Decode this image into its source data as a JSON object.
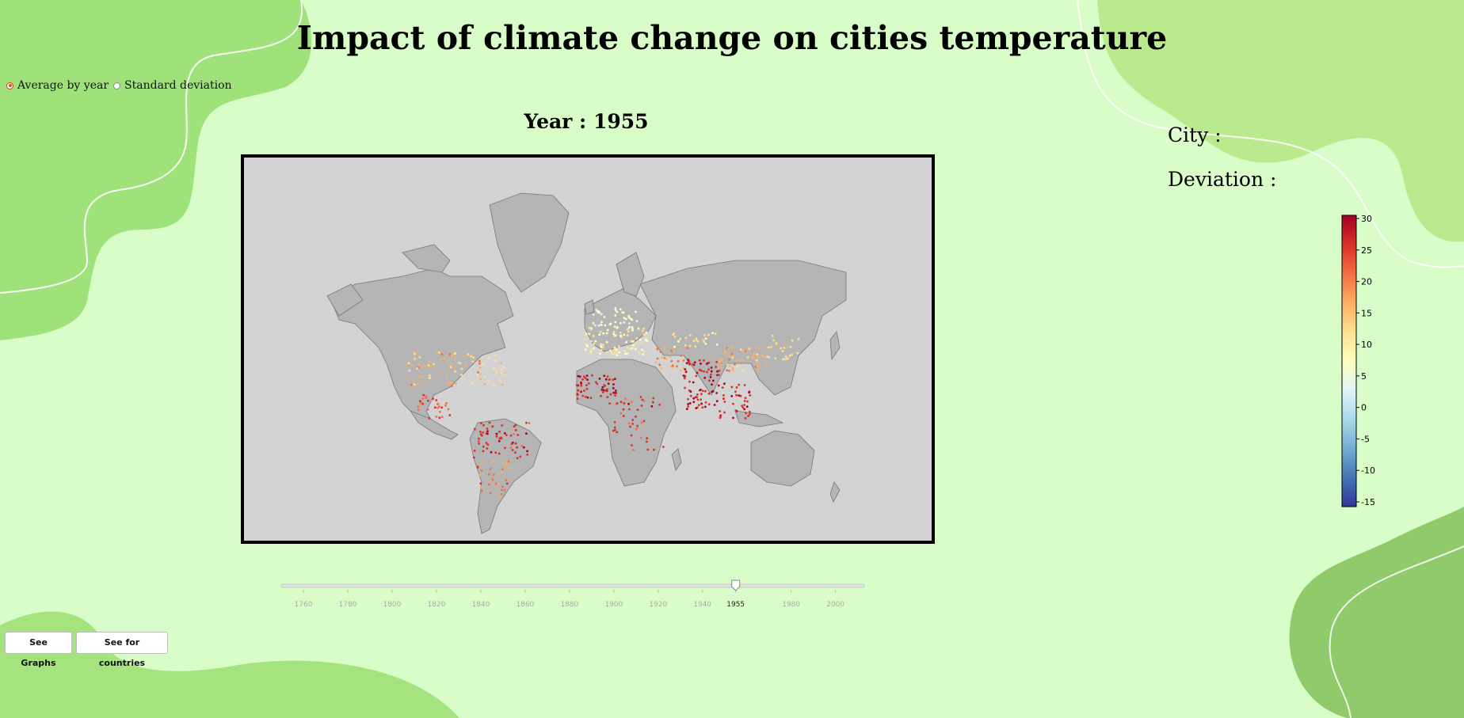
{
  "page": {
    "title": "Impact of climate change on cities temperature"
  },
  "controls": {
    "radio_options": [
      {
        "label": "Average by year",
        "selected": true
      },
      {
        "label": "Standard deviation",
        "selected": false
      }
    ]
  },
  "map": {
    "year_prefix": "Year : ",
    "year": "1955",
    "background_color": "#d3d3d3",
    "land_color": "#b5b5b5"
  },
  "info": {
    "city_label": "City :",
    "deviation_label": "Deviation :"
  },
  "colorbar": {
    "min": -15,
    "max": 30,
    "ticks": [
      "30",
      "25",
      "20",
      "15",
      "10",
      "5",
      "0",
      "-5",
      "-10",
      "-15"
    ],
    "colors": [
      "#313695",
      "#4575b4",
      "#74add1",
      "#abd9e9",
      "#e0f3f8",
      "#ffffbf",
      "#fee090",
      "#fdae61",
      "#f46d43",
      "#d73027",
      "#a50026"
    ]
  },
  "slider": {
    "tick_labels": [
      "1760",
      "1780",
      "1800",
      "1820",
      "1840",
      "1860",
      "1880",
      "1900",
      "1920",
      "1940",
      "1955",
      "1980",
      "2000"
    ],
    "selected_value": "1955",
    "min_year": 1750,
    "max_year": 2013
  },
  "buttons": {
    "graphs_label": "See Graphs",
    "countries_label": "See for countries"
  }
}
